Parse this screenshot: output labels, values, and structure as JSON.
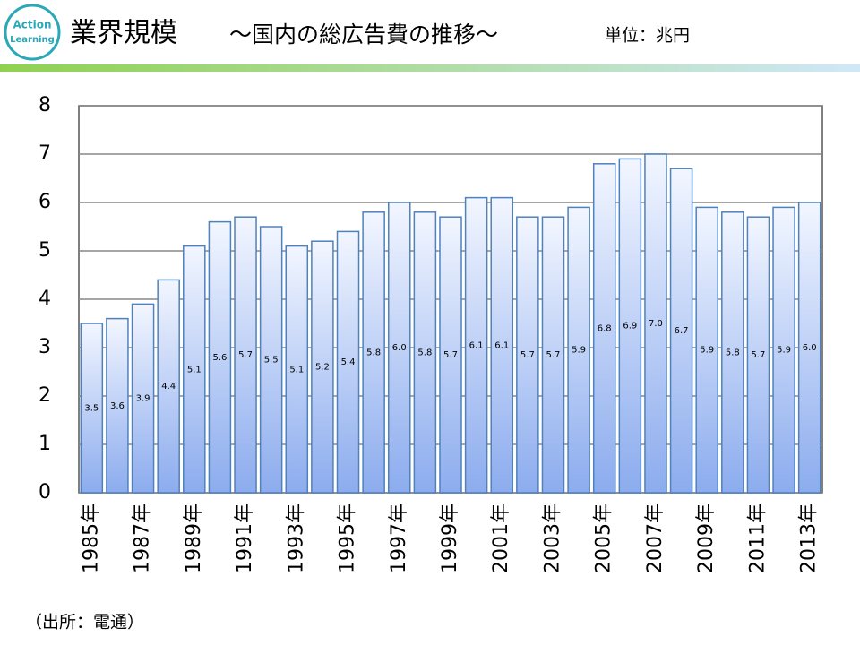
{
  "chart_data": {
    "type": "bar",
    "logo": [
      "Action",
      "Learning"
    ],
    "title": "業界規模",
    "subtitle": "～国内の総広告費の推移～",
    "unit_label": "単位：兆円",
    "source": "（出所：電通）",
    "categories": [
      "1985年",
      null,
      "1987年",
      null,
      "1989年",
      null,
      "1991年",
      null,
      "1993年",
      null,
      "1995年",
      null,
      "1997年",
      null,
      "1999年",
      null,
      "2001年",
      null,
      "2003年",
      null,
      "2005年",
      null,
      "2007年",
      null,
      "2009年",
      null,
      "2011年",
      null,
      "2013年"
    ],
    "values": [
      3.5,
      3.6,
      3.9,
      4.4,
      5.1,
      5.6,
      5.7,
      5.5,
      5.1,
      5.2,
      5.4,
      5.8,
      6.0,
      5.8,
      5.7,
      6.1,
      6.1,
      5.7,
      5.7,
      5.9,
      6.8,
      6.9,
      7.0,
      6.7,
      5.9,
      5.8,
      5.7,
      5.9,
      6.0
    ],
    "value_labels": [
      "3.5",
      "3.6",
      "3.9",
      "4.4",
      "5.1",
      "5.6",
      "5.7",
      "5.5",
      "5.1",
      "5.2",
      "5.4",
      "5.8",
      "6.0",
      "5.8",
      "5.7",
      "6.1",
      "6.1",
      "5.7",
      "5.7",
      "5.9",
      "6.8",
      "6.9",
      "7.0",
      "6.7",
      "5.9",
      "5.8",
      "5.7",
      "5.9",
      "6.0"
    ],
    "color": "#4f81bd",
    "ylim": [
      0,
      8
    ],
    "yticks": [
      0,
      1,
      2,
      3,
      4,
      5,
      6,
      7,
      8
    ],
    "grid": true
  }
}
